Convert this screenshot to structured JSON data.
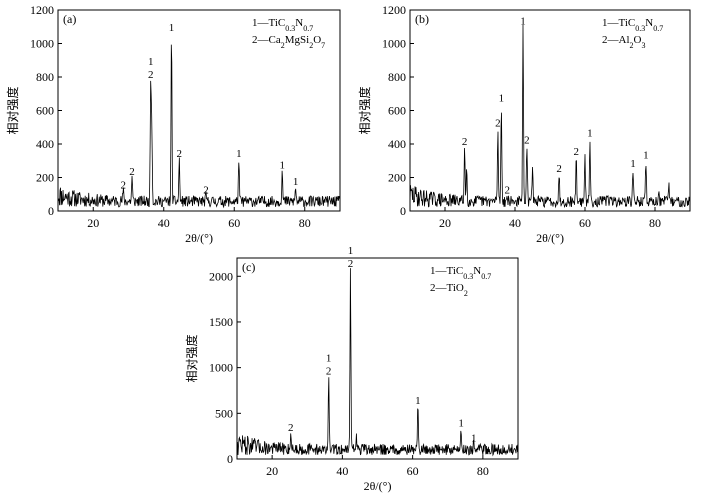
{
  "chart_data": [
    {
      "type": "line",
      "panel_label": "(a)",
      "xlabel": "2θ/(°)",
      "ylabel": "相对强度",
      "xlim": [
        10,
        90
      ],
      "ylim": [
        0,
        1200
      ],
      "xticks": [
        20,
        40,
        60,
        80
      ],
      "yticks": [
        0,
        200,
        400,
        600,
        800,
        1000,
        1200
      ],
      "legend": {
        "placement": "top-right",
        "entries": [
          {
            "marker": "1",
            "label": "TiC0.3N0.7"
          },
          {
            "marker": "2",
            "label": "Ca2MgSi2O7"
          }
        ]
      },
      "peaks": [
        {
          "x": 28.5,
          "y": 110,
          "labels": [
            "2"
          ]
        },
        {
          "x": 31.0,
          "y": 190,
          "labels": [
            "2"
          ]
        },
        {
          "x": 36.3,
          "y": 770,
          "labels": [
            "1",
            "2"
          ]
        },
        {
          "x": 36.6,
          "y": 530,
          "labels": []
        },
        {
          "x": 42.2,
          "y": 1050,
          "labels": [
            "1"
          ]
        },
        {
          "x": 44.4,
          "y": 300,
          "labels": [
            "2"
          ]
        },
        {
          "x": 52.0,
          "y": 80,
          "labels": [
            "2"
          ]
        },
        {
          "x": 61.3,
          "y": 300,
          "labels": [
            "1"
          ]
        },
        {
          "x": 73.6,
          "y": 230,
          "labels": [
            "1"
          ]
        },
        {
          "x": 77.4,
          "y": 130,
          "labels": [
            "1"
          ]
        }
      ]
    },
    {
      "type": "line",
      "panel_label": "(b)",
      "xlabel": "2θ/(°)",
      "ylabel": "相对强度",
      "xlim": [
        10,
        90
      ],
      "ylim": [
        0,
        1200
      ],
      "xticks": [
        20,
        40,
        60,
        80
      ],
      "yticks": [
        0,
        200,
        400,
        600,
        800,
        1000,
        1200
      ],
      "legend": {
        "placement": "top-right",
        "entries": [
          {
            "marker": "1",
            "label": "TiC0.3N0.7"
          },
          {
            "marker": "2",
            "label": "Al2O3"
          }
        ]
      },
      "peaks": [
        {
          "x": 25.6,
          "y": 370,
          "labels": [
            "2"
          ]
        },
        {
          "x": 26.2,
          "y": 240,
          "labels": []
        },
        {
          "x": 35.1,
          "y": 480,
          "labels": [
            "2"
          ]
        },
        {
          "x": 36.1,
          "y": 630,
          "labels": [
            "1"
          ]
        },
        {
          "x": 37.8,
          "y": 80,
          "labels": [
            "2"
          ]
        },
        {
          "x": 42.3,
          "y": 1090,
          "labels": [
            "1"
          ]
        },
        {
          "x": 43.4,
          "y": 380,
          "labels": [
            "2"
          ]
        },
        {
          "x": 45.0,
          "y": 280,
          "labels": []
        },
        {
          "x": 52.6,
          "y": 210,
          "labels": [
            "2"
          ]
        },
        {
          "x": 57.5,
          "y": 310,
          "labels": [
            "2"
          ]
        },
        {
          "x": 60.0,
          "y": 300,
          "labels": []
        },
        {
          "x": 61.4,
          "y": 420,
          "labels": [
            "1"
          ]
        },
        {
          "x": 66.5,
          "y": 110,
          "labels": []
        },
        {
          "x": 73.7,
          "y": 240,
          "labels": [
            "1"
          ]
        },
        {
          "x": 77.4,
          "y": 290,
          "labels": [
            "1"
          ]
        },
        {
          "x": 81.0,
          "y": 120,
          "labels": []
        },
        {
          "x": 84.0,
          "y": 140,
          "labels": []
        }
      ]
    },
    {
      "type": "line",
      "panel_label": "(c)",
      "xlabel": "2θ/(°)",
      "ylabel": "相对强度",
      "xlim": [
        10,
        90
      ],
      "ylim": [
        0,
        2200
      ],
      "xticks": [
        20,
        40,
        60,
        80
      ],
      "yticks": [
        0,
        500,
        1000,
        1500,
        2000
      ],
      "legend": {
        "placement": "top-right",
        "entries": [
          {
            "marker": "1",
            "label": "TiC0.3N0.7"
          },
          {
            "marker": "2",
            "label": "TiO2"
          }
        ]
      },
      "peaks": [
        {
          "x": 25.3,
          "y": 260,
          "labels": [
            "2"
          ]
        },
        {
          "x": 36.1,
          "y": 880,
          "labels": [
            "1",
            "2"
          ]
        },
        {
          "x": 42.3,
          "y": 2060,
          "labels": [
            "1",
            "2"
          ]
        },
        {
          "x": 44.0,
          "y": 230,
          "labels": []
        },
        {
          "x": 61.5,
          "y": 560,
          "labels": [
            "1"
          ]
        },
        {
          "x": 73.8,
          "y": 310,
          "labels": [
            "1"
          ]
        },
        {
          "x": 77.4,
          "y": 150,
          "labels": [
            "1"
          ]
        }
      ]
    }
  ]
}
